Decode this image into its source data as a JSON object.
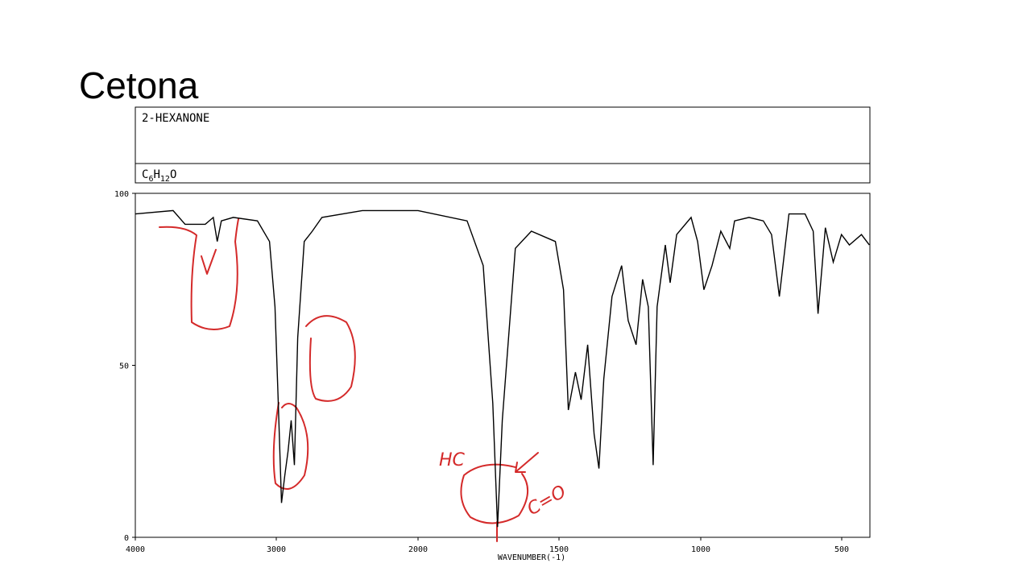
{
  "title": "Cetona",
  "compound": "2-HEXANONE",
  "formula": [
    "C",
    "6",
    "H",
    "12",
    "O"
  ],
  "annotations": [
    "HC",
    "C=O"
  ],
  "chart_data": {
    "type": "line",
    "xlabel": "WAVENUMBER(-1)",
    "x": [
      4000,
      3732,
      3647,
      3504,
      3447,
      3419,
      3390,
      3305,
      3134,
      3048,
      3009,
      2986,
      2963,
      2940,
      2917,
      2895,
      2872,
      2849,
      2803,
      2746,
      2678,
      2393,
      2000,
      1826,
      1769,
      1735,
      1718,
      1701,
      1655,
      1598,
      1513,
      1484,
      1467,
      1442,
      1422,
      1399,
      1376,
      1359,
      1342,
      1313,
      1279,
      1256,
      1228,
      1205,
      1185,
      1168,
      1154,
      1125,
      1108,
      1085,
      1034,
      1011,
      989,
      960,
      929,
      897,
      880,
      829,
      778,
      749,
      721,
      687,
      630,
      601,
      584,
      558,
      530,
      501,
      473,
      430,
      402
    ],
    "values": [
      94,
      95,
      91,
      91,
      93,
      86,
      92,
      93,
      92,
      86,
      67,
      39,
      10,
      18,
      25,
      34,
      21,
      58,
      86,
      89,
      93,
      95,
      95,
      92,
      79,
      39,
      3,
      34,
      84,
      89,
      86,
      72,
      37,
      48,
      40,
      56,
      30,
      20,
      46,
      70,
      79,
      63,
      56,
      75,
      67,
      21,
      67,
      85,
      74,
      88,
      93,
      86,
      72,
      79,
      89,
      84,
      92,
      93,
      92,
      88,
      70,
      94,
      94,
      89,
      65,
      90,
      80,
      88,
      85,
      88,
      85
    ],
    "color": "#000000",
    "xlim": [
      4000,
      400
    ],
    "xticks": [
      4000,
      3000,
      2000,
      1500,
      1000,
      500
    ],
    "ylim": [
      0,
      100
    ],
    "yticks": [
      0,
      50,
      100
    ]
  }
}
